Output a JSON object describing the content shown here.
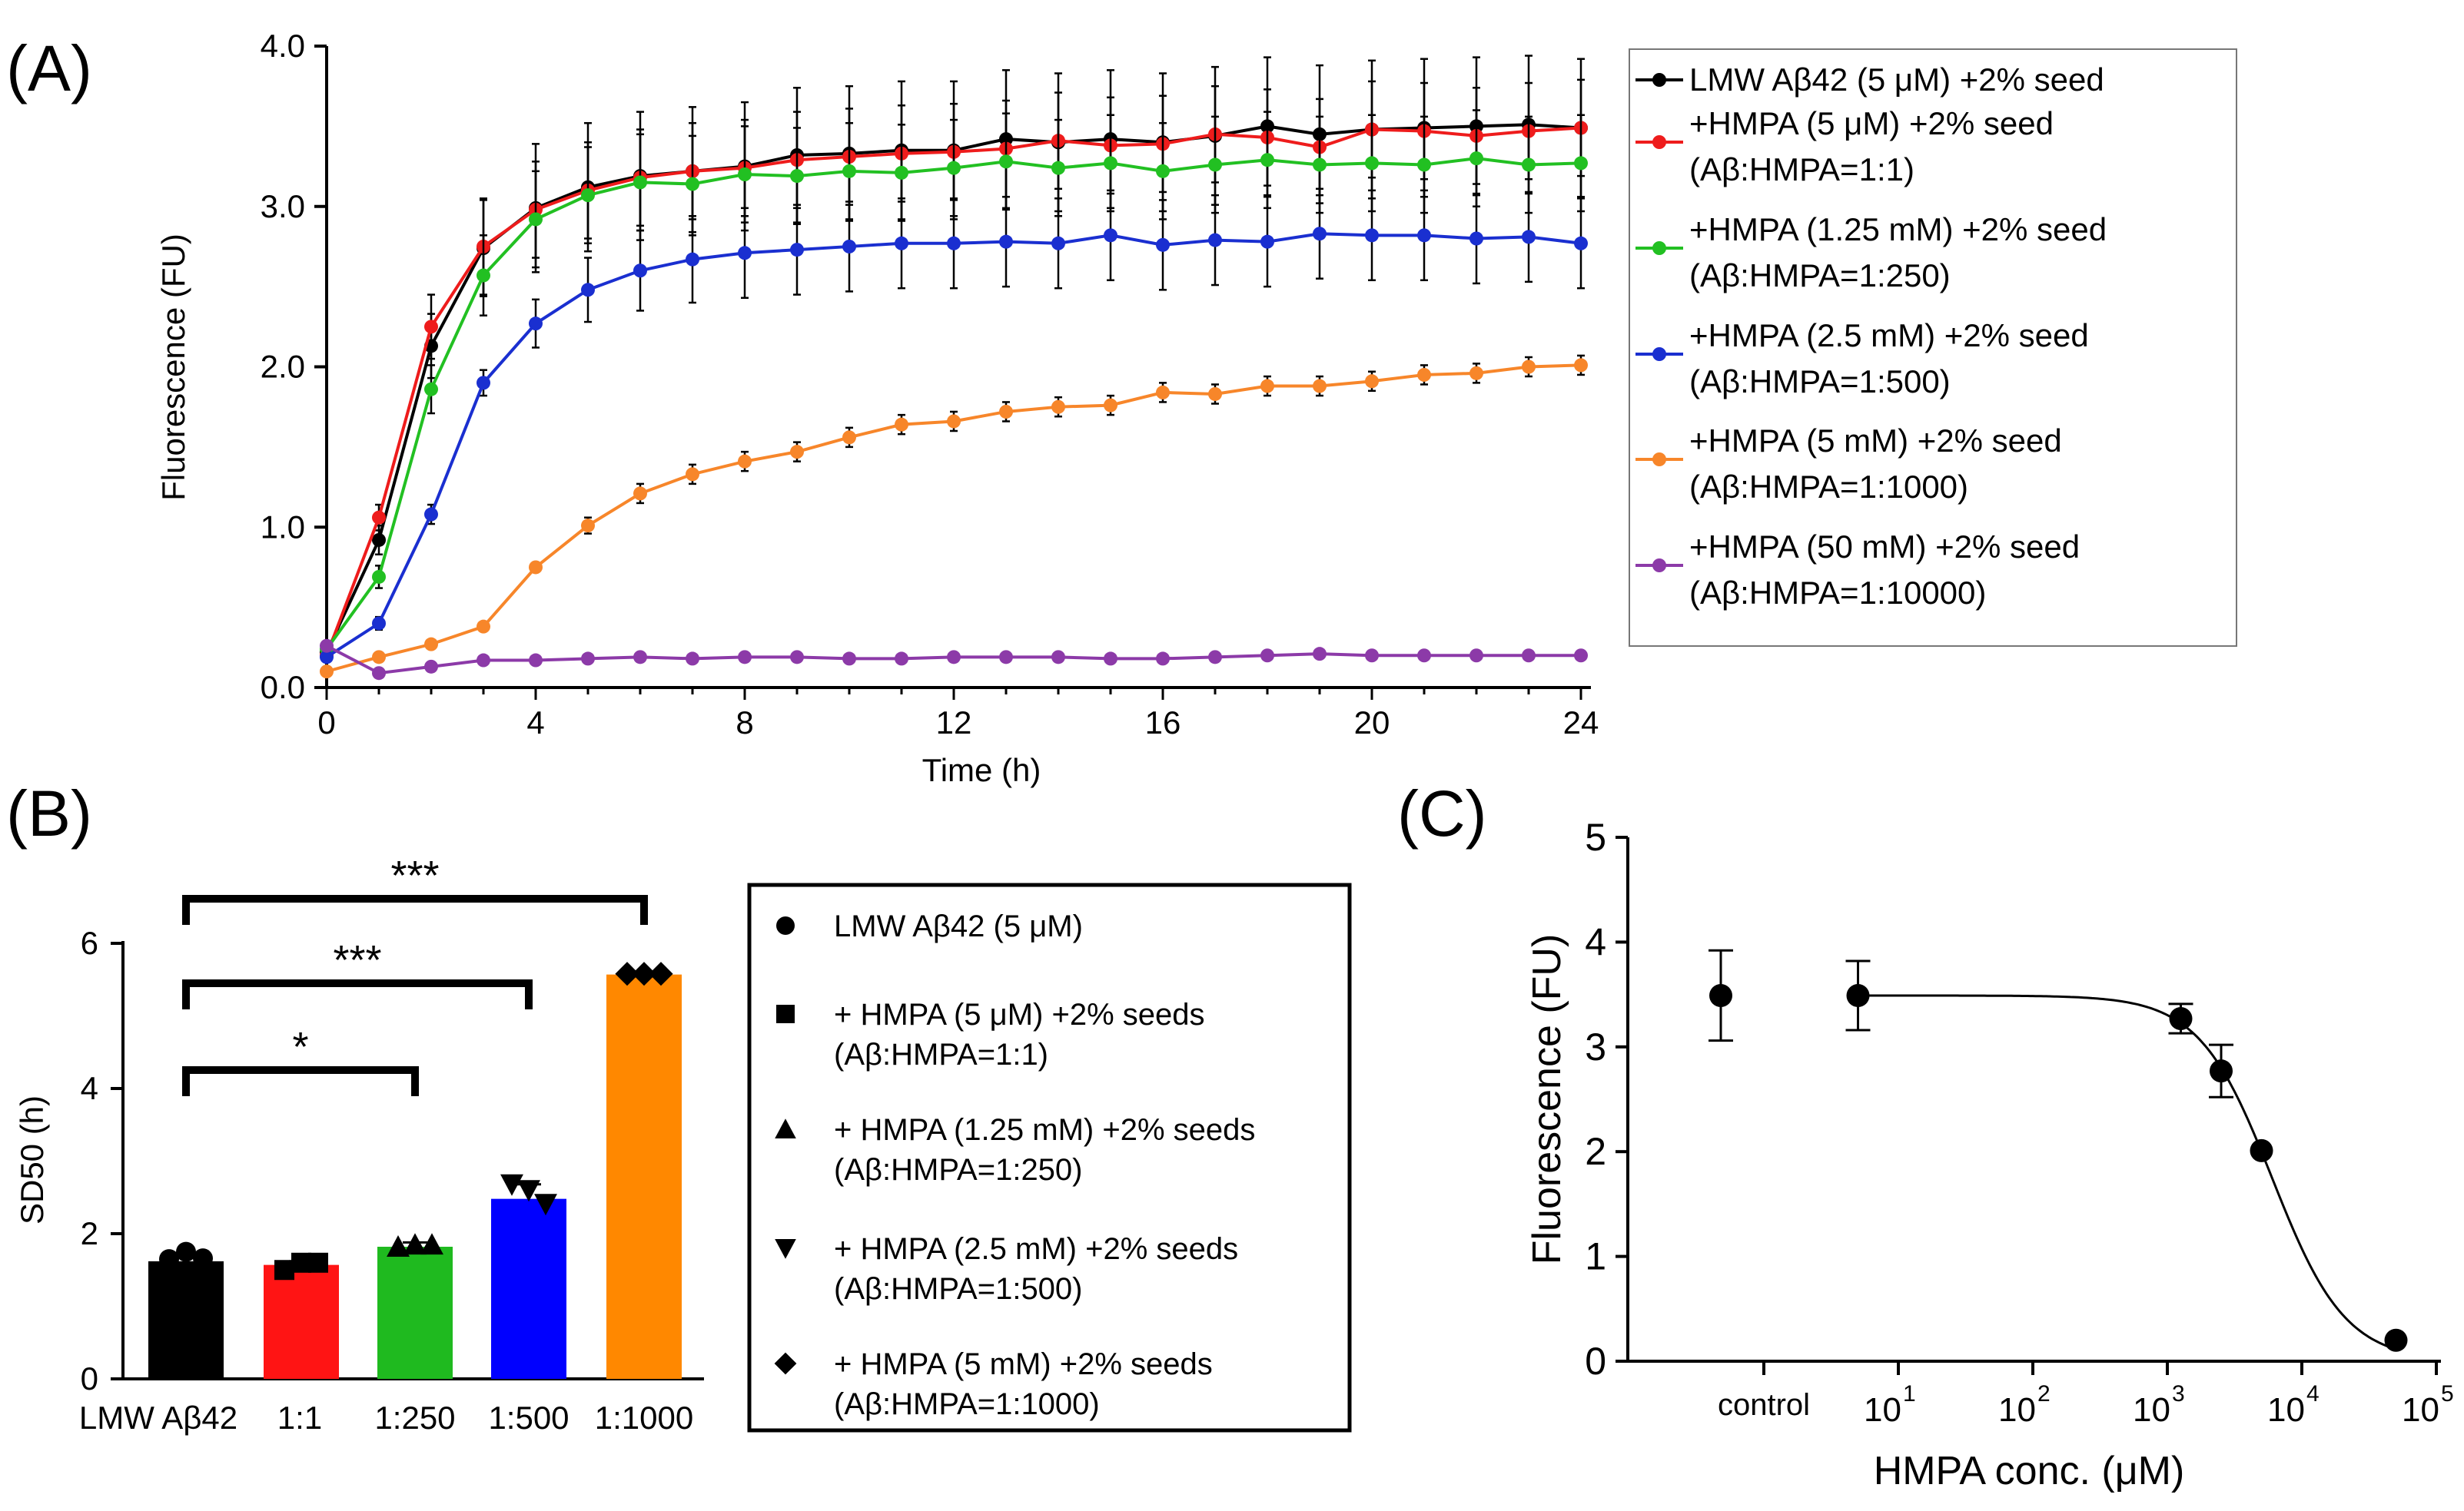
{
  "chart_data": [
    {
      "panel_label": "(A)",
      "type": "line",
      "xlabel": "Time (h)",
      "ylabel": "Fluorescence (FU)",
      "xlim": [
        0,
        24
      ],
      "ylim": [
        0,
        4
      ],
      "xticks": [
        "0",
        "4",
        "8",
        "12",
        "16",
        "20",
        "24"
      ],
      "yticks": [
        "0.0",
        "1.0",
        "2.0",
        "3.0",
        "4.0"
      ],
      "x": [
        0,
        1,
        2,
        3,
        4,
        5,
        6,
        7,
        8,
        9,
        10,
        11,
        12,
        13,
        14,
        15,
        16,
        17,
        18,
        19,
        20,
        21,
        22,
        23,
        24
      ],
      "series": [
        {
          "name": "LMW Aβ42 (5 μM) +2% seed",
          "name2": "",
          "color": "#000000",
          "values": [
            0.22,
            0.92,
            2.13,
            2.74,
            2.99,
            3.12,
            3.19,
            3.22,
            3.25,
            3.32,
            3.33,
            3.35,
            3.35,
            3.42,
            3.4,
            3.42,
            3.4,
            3.44,
            3.5,
            3.45,
            3.48,
            3.49,
            3.5,
            3.51,
            3.49
          ],
          "err": [
            0.04,
            0.09,
            0.2,
            0.3,
            0.4,
            0.4,
            0.4,
            0.4,
            0.4,
            0.42,
            0.42,
            0.43,
            0.43,
            0.43,
            0.43,
            0.43,
            0.43,
            0.43,
            0.43,
            0.43,
            0.43,
            0.43,
            0.43,
            0.43,
            0.43
          ]
        },
        {
          "name": "+HMPA (5 μM) +2% seed",
          "name2": "(Aβ:HMPA=1:1)",
          "color": "#ee1c1c",
          "values": [
            0.2,
            1.06,
            2.25,
            2.75,
            2.98,
            3.1,
            3.18,
            3.22,
            3.24,
            3.29,
            3.31,
            3.33,
            3.34,
            3.36,
            3.41,
            3.38,
            3.39,
            3.45,
            3.43,
            3.37,
            3.48,
            3.47,
            3.44,
            3.47,
            3.49
          ],
          "err": [
            0.03,
            0.08,
            0.2,
            0.3,
            0.3,
            0.3,
            0.3,
            0.3,
            0.3,
            0.3,
            0.3,
            0.3,
            0.3,
            0.3,
            0.3,
            0.3,
            0.3,
            0.3,
            0.3,
            0.3,
            0.3,
            0.3,
            0.3,
            0.3,
            0.3
          ]
        },
        {
          "name": "+HMPA (1.25 mM) +2% seed",
          "name2": "(Aβ:HMPA=1:250)",
          "color": "#22c022",
          "values": [
            0.24,
            0.69,
            1.86,
            2.57,
            2.92,
            3.07,
            3.15,
            3.14,
            3.2,
            3.19,
            3.22,
            3.21,
            3.24,
            3.28,
            3.24,
            3.27,
            3.22,
            3.26,
            3.29,
            3.26,
            3.27,
            3.26,
            3.3,
            3.26,
            3.27
          ],
          "err": [
            0.03,
            0.07,
            0.15,
            0.25,
            0.3,
            0.3,
            0.3,
            0.3,
            0.3,
            0.3,
            0.3,
            0.3,
            0.3,
            0.3,
            0.3,
            0.3,
            0.3,
            0.3,
            0.3,
            0.3,
            0.3,
            0.3,
            0.3,
            0.3,
            0.3
          ]
        },
        {
          "name": "+HMPA (2.5 mM) +2% seed",
          "name2": "(Aβ:HMPA=1:500)",
          "color": "#1a2fd0",
          "values": [
            0.19,
            0.4,
            1.08,
            1.9,
            2.27,
            2.48,
            2.6,
            2.67,
            2.71,
            2.73,
            2.75,
            2.77,
            2.77,
            2.78,
            2.77,
            2.82,
            2.76,
            2.79,
            2.78,
            2.83,
            2.82,
            2.82,
            2.8,
            2.81,
            2.77
          ],
          "err": [
            0.02,
            0.04,
            0.06,
            0.08,
            0.15,
            0.2,
            0.25,
            0.27,
            0.28,
            0.28,
            0.28,
            0.28,
            0.28,
            0.28,
            0.28,
            0.28,
            0.28,
            0.28,
            0.28,
            0.28,
            0.28,
            0.28,
            0.28,
            0.28,
            0.28
          ]
        },
        {
          "name": "+HMPA (5 mM) +2% seed",
          "name2": "(Aβ:HMPA=1:1000)",
          "color": "#f7862a",
          "values": [
            0.1,
            0.19,
            0.27,
            0.38,
            0.75,
            1.01,
            1.21,
            1.33,
            1.41,
            1.47,
            1.56,
            1.64,
            1.66,
            1.72,
            1.75,
            1.76,
            1.84,
            1.83,
            1.88,
            1.88,
            1.91,
            1.95,
            1.96,
            2.0,
            2.01
          ],
          "err": [
            0.01,
            0.01,
            0.02,
            0.02,
            0.03,
            0.05,
            0.06,
            0.06,
            0.06,
            0.06,
            0.06,
            0.06,
            0.06,
            0.06,
            0.06,
            0.06,
            0.06,
            0.06,
            0.06,
            0.06,
            0.06,
            0.06,
            0.06,
            0.06,
            0.06
          ]
        },
        {
          "name": "+HMPA (50 mM) +2% seed",
          "name2": "(Aβ:HMPA=1:10000)",
          "color": "#8c3aa8",
          "values": [
            0.26,
            0.09,
            0.13,
            0.17,
            0.17,
            0.18,
            0.19,
            0.18,
            0.19,
            0.19,
            0.18,
            0.18,
            0.19,
            0.19,
            0.19,
            0.18,
            0.18,
            0.19,
            0.2,
            0.21,
            0.2,
            0.2,
            0.2,
            0.2,
            0.2
          ],
          "err": [
            0,
            0,
            0,
            0,
            0,
            0,
            0,
            0,
            0,
            0,
            0,
            0,
            0,
            0,
            0,
            0,
            0,
            0,
            0,
            0,
            0,
            0,
            0,
            0,
            0
          ]
        }
      ]
    },
    {
      "panel_label": "(B)",
      "type": "bar",
      "ylabel": "SD50 (h)",
      "ylim": [
        0,
        6
      ],
      "yticks": [
        "0",
        "2",
        "4",
        "6"
      ],
      "categories": [
        "LMW Aβ42",
        "1:1",
        "1:250",
        "1:500",
        "1:1000"
      ],
      "values": [
        1.62,
        1.57,
        1.82,
        2.48,
        5.57
      ],
      "err": [
        0.08,
        0.05,
        0.06,
        0.2,
        0.02
      ],
      "colors": [
        "#000000",
        "#ff1414",
        "#1fba1f",
        "#0000ff",
        "#ff8800"
      ],
      "markers": [
        "circle",
        "square",
        "triangle-up",
        "triangle-down",
        "diamond"
      ],
      "points": [
        [
          1.65,
          1.75,
          1.66
        ],
        [
          1.5,
          1.6,
          1.6
        ],
        [
          1.82,
          1.85,
          1.85
        ],
        [
          2.68,
          2.6,
          2.41
        ],
        [
          5.58,
          5.58,
          5.58
        ]
      ],
      "significance": [
        {
          "from": 0,
          "to": 2,
          "label": "*"
        },
        {
          "from": 0,
          "to": 3,
          "label": "***"
        },
        {
          "from": 0,
          "to": 4,
          "label": "***"
        }
      ],
      "legend": [
        {
          "marker": "circle",
          "line1": "LMW Aβ42 (5 μM)",
          "line2": ""
        },
        {
          "marker": "square",
          "line1": "+ HMPA (5 μM) +2% seeds",
          "line2": "(Aβ:HMPA=1:1)"
        },
        {
          "marker": "triangle-up",
          "line1": "+ HMPA (1.25 mM) +2% seeds",
          "line2": "(Aβ:HMPA=1:250)"
        },
        {
          "marker": "triangle-down",
          "line1": "+ HMPA (2.5 mM) +2% seeds",
          "line2": "(Aβ:HMPA=1:500)"
        },
        {
          "marker": "diamond",
          "line1": "+ HMPA (5 mM) +2% seeds",
          "line2": "(Aβ:HMPA=1:1000)"
        }
      ]
    },
    {
      "panel_label": "(C)",
      "type": "scatter",
      "xlabel": "HMPA conc. (μM)",
      "ylabel": "Fluorescence (FU)",
      "xscale": "log",
      "xlim_log10": [
        -0.8,
        5
      ],
      "ylim": [
        0,
        5
      ],
      "yticks": [
        "0",
        "1",
        "2",
        "3",
        "4",
        "5"
      ],
      "xticks": [
        {
          "label": "control",
          "base": "",
          "exp": ""
        },
        {
          "label": "",
          "base": "10",
          "exp": "1"
        },
        {
          "label": "",
          "base": "10",
          "exp": "2"
        },
        {
          "label": "",
          "base": "10",
          "exp": "3"
        },
        {
          "label": "",
          "base": "10",
          "exp": "4"
        },
        {
          "label": "",
          "base": "10",
          "exp": "5"
        }
      ],
      "xtick_log10": [
        0,
        1,
        2,
        3,
        4,
        5
      ],
      "points_log10x": [
        -0.32,
        0.7,
        3.1,
        3.4,
        3.7,
        4.7
      ],
      "values": [
        3.49,
        3.49,
        3.27,
        2.77,
        2.01,
        0.2
      ],
      "err": [
        0.43,
        0.33,
        0.14,
        0.25,
        0.0,
        0.0
      ],
      "fit": {
        "top": 3.49,
        "bottom": 0.0,
        "log_ic50": 3.78,
        "hill": 1.6
      }
    }
  ]
}
